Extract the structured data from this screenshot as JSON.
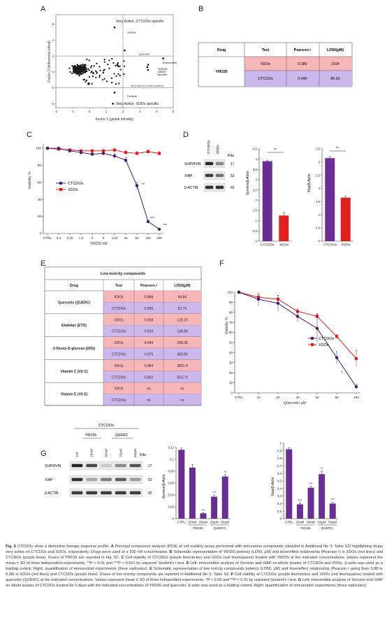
{
  "panels": {
    "A": {
      "letter": "A",
      "xlabel": "Factor 1 (global lethality)",
      "ylabel": "Factor 2 (differential effect)",
      "region_top": "Very Active, CTCDOs specific",
      "region_right": "Very Active in both systems",
      "region_bottom": "Very Active, XDOs specific",
      "xticks": [
        "-2",
        "-1",
        "0",
        "1",
        "2",
        "3",
        "4",
        "5"
      ],
      "yticks": [
        "6",
        "4",
        "2",
        "0",
        "-2",
        "-4"
      ],
      "labels": {
        "ym155": "YM155",
        "auy922": "AUY922",
        "bortezomib": "Bortezomib",
        "tae684": "TAE684",
        "ab050": "AB050",
        "triptolide": "Triptolide",
        "pelitinib": "Pelitinib"
      }
    },
    "B": {
      "letter": "B",
      "headers": [
        "Drug",
        "Test",
        "Pearson r",
        "LD50(µM)"
      ],
      "drug": "YM155",
      "rows": [
        {
          "test": "XDOs",
          "r": "0.380",
          "ld50": "2164"
        },
        {
          "test": "CTCDOs",
          "r": "0.940",
          "ld50": "86.03"
        }
      ]
    },
    "C": {
      "letter": "C",
      "ylabel": "Viability %",
      "xlabel": "YM155 nM",
      "yticks": [
        "100",
        "80",
        "60",
        "40",
        "20",
        "0"
      ],
      "xticks": [
        "CTRL",
        "0,4",
        "0,75",
        "1,5",
        "3",
        "6",
        "12,5",
        "25",
        "50",
        "100",
        "200"
      ],
      "legend": [
        "CTCDOs",
        "XDOs"
      ],
      "sig": [
        "**",
        "***",
        "***"
      ]
    },
    "D": {
      "letter": "D",
      "lanes": [
        "CTCDOs",
        "XDOs"
      ],
      "kda_label": "Kda",
      "blots": [
        {
          "name": "SURVIVIN",
          "kda": "17"
        },
        {
          "name": "XIAP",
          "kda": "53"
        },
        {
          "name": "β-ACTIN",
          "kda": "42"
        }
      ],
      "chart1": {
        "ylabel": "Survivin/β-Actin",
        "yticks": [
          "4,5",
          "4",
          "3,5",
          "3",
          "2,5",
          "2",
          "1,5",
          "1",
          "0,5",
          "0"
        ],
        "categories": [
          "CTCDOs",
          "XDOs"
        ],
        "sig": "**"
      },
      "chart2": {
        "ylabel": "Xiap/β-Actin",
        "yticks": [
          "3,5",
          "3",
          "2,5",
          "2",
          "1,5",
          "1",
          "0,5",
          "0"
        ],
        "categories": [
          "CTCDOs",
          "XDOs"
        ],
        "sig": "**"
      }
    },
    "E": {
      "letter": "E",
      "title": "Low toxicity compounds",
      "headers": [
        "Drug",
        "Test",
        "Pearson r",
        "LD50(µM)"
      ],
      "rows": [
        {
          "drug": "Quercetin (QUERC)",
          "x": {
            "test": "XDOs",
            "r": "0.888",
            "ld50": "94.84"
          },
          "c": {
            "test": "CTCDOs",
            "r": "0.905",
            "ld50": "51.76"
          }
        },
        {
          "drug": "Etodolac (ETO)",
          "x": {
            "test": "XDOs",
            "r": "0.958",
            "ld50": "120.22"
          },
          "c": {
            "test": "CTCDOs",
            "r": "0.910",
            "ld50": "134.86"
          }
        },
        {
          "drug": "2-Deoxy-D-glucose (2DG)",
          "x": {
            "test": "XDOs",
            "r": "0.949",
            "ld50": "258.05"
          },
          "c": {
            "test": "CTCDOs",
            "r": "0.975",
            "ld50": "383.86"
          }
        },
        {
          "drug": "Vitamin C (Vit C)",
          "x": {
            "test": "XDOs",
            "r": "0.984",
            "ld50": "3801.9"
          },
          "c": {
            "test": "CTCDOs",
            "r": "0.902",
            "ld50": "8317.6"
          }
        },
        {
          "drug": "Vitamin E (Vit E)",
          "x": {
            "test": "XDOs",
            "r": "ns",
            "ld50": "ns"
          },
          "c": {
            "test": "CTCDOs",
            "r": "ns",
            "ld50": "ns"
          }
        }
      ]
    },
    "F": {
      "letter": "F",
      "ylabel": "Viability %",
      "xlabel": "Quercetin µM",
      "yticks": [
        "100",
        "90",
        "80",
        "70",
        "60",
        "50",
        "40",
        "30",
        "20",
        "10",
        "0"
      ],
      "xticks": [
        "CTRL",
        "10",
        "20",
        "40",
        "50",
        "80",
        "100"
      ],
      "legend": [
        "CTCDOs",
        "XDOs"
      ],
      "sig": [
        "*",
        "*"
      ]
    },
    "G": {
      "letter": "G",
      "header": "CTCDOs",
      "groups": [
        "YM155",
        "QUERC"
      ],
      "lanes": [
        "Ctrl",
        "25nM",
        "50nM",
        "25µM",
        "50µM"
      ],
      "kda_label": "Kda",
      "blots": [
        {
          "name": "SURVIVIN",
          "kda": "17"
        },
        {
          "name": "XIAP",
          "kda": "53"
        },
        {
          "name": "β-ACTIN",
          "kda": "42"
        }
      ],
      "chart1": {
        "ylabel": "Survivin/β-Actin",
        "yticks": [
          "0,12",
          "0,1",
          "0,08",
          "0,06",
          "0,04",
          "0,02",
          "0"
        ],
        "categories": [
          "CTRL",
          "25nM",
          "50nM",
          "25µM",
          "50µM"
        ],
        "groups": [
          "YM155",
          "QUERC"
        ],
        "sig": [
          "***",
          "***",
          "**"
        ]
      },
      "chart2": {
        "ylabel": "Xiap/β-Actin",
        "yticks": [
          "1",
          "0,9",
          "0,8",
          "0,7",
          "0,6",
          "0,5",
          "0,4",
          "0,3",
          "0,2",
          "0,1",
          "0"
        ],
        "categories": [
          "CTRL",
          "25nM",
          "50nM",
          "25µM",
          "50µM"
        ],
        "groups": [
          "YM155",
          "QUERC"
        ],
        "sig": [
          "***",
          "***",
          "**",
          "***"
        ]
      }
    }
  },
  "chart_data": [
    {
      "type": "scatter",
      "id": "A",
      "xlabel": "Factor 1 (global lethality)",
      "ylabel": "Factor 2 (differential effect)",
      "xlim": [
        -2,
        5
      ],
      "ylim": [
        -4.5,
        7.2
      ],
      "reference_lines": {
        "x": 2,
        "y": [
          2,
          -2
        ]
      },
      "highlighted": [
        {
          "label": "YM155",
          "x": 1.5,
          "y": 5.6
        },
        {
          "label": "AUY922",
          "x": 2.1,
          "y": 2.7
        },
        {
          "label": "Bortezomib",
          "x": 4.4,
          "y": 1.7
        },
        {
          "label": "TAE684",
          "x": 3.5,
          "y": 0.9
        },
        {
          "label": "AB050",
          "x": 3.45,
          "y": 0.6
        },
        {
          "label": "Triptolide",
          "x": 3.5,
          "y": 0.25
        },
        {
          "label": "Pelitinib",
          "x": 1.5,
          "y": -2.6
        },
        {
          "label": "",
          "x": 1.4,
          "y": -4.0
        }
      ],
      "points_count": 265
    },
    {
      "type": "line",
      "id": "C",
      "xlabel": "YM155 nM",
      "ylabel": "Viability %",
      "ylim": [
        0,
        105
      ],
      "categories": [
        "CTRL",
        "0,4",
        "0,75",
        "1,5",
        "3",
        "6",
        "12,5",
        "25",
        "50",
        "100",
        "200"
      ],
      "series": [
        {
          "name": "CTCDOs",
          "values": [
            100,
            100,
            97,
            95,
            93,
            94,
            91,
            86,
            56,
            14,
            5
          ],
          "errors": [
            1,
            1,
            2,
            2,
            2,
            2,
            3,
            3,
            4,
            1,
            1
          ]
        },
        {
          "name": "XDOs",
          "values": [
            100,
            99,
            98,
            97,
            97,
            97,
            98,
            95,
            94,
            96,
            94
          ],
          "errors": [
            1,
            1,
            1,
            1,
            1,
            1,
            1,
            2,
            2,
            2,
            2
          ]
        }
      ]
    },
    {
      "type": "bar",
      "id": "D-survivin",
      "ylabel": "Survivin/β-Actin",
      "ylim": [
        0,
        4.5
      ],
      "categories": [
        "CTCDOs",
        "XDOs"
      ],
      "values": [
        3.9,
        1.25
      ],
      "errors": [
        0.05,
        0.15
      ]
    },
    {
      "type": "bar",
      "id": "D-xiap",
      "ylabel": "Xiap/β-Actin",
      "ylim": [
        0,
        3.5
      ],
      "categories": [
        "CTCDOs",
        "XDOs"
      ],
      "values": [
        3.15,
        1.65
      ],
      "errors": [
        0.06,
        0.05
      ]
    },
    {
      "type": "table",
      "id": "B",
      "columns": [
        "Drug",
        "Test",
        "Pearson r",
        "LD50(µM)"
      ],
      "rows": [
        [
          "YM155",
          "XDOs",
          "0.380",
          "2164"
        ],
        [
          "YM155",
          "CTCDOs",
          "0.940",
          "86.03"
        ]
      ]
    },
    {
      "type": "table",
      "id": "E",
      "title": "Low toxicity compounds",
      "columns": [
        "Drug",
        "Test",
        "Pearson r",
        "LD50(µM)"
      ],
      "rows": [
        [
          "Quercetin (QUERC)",
          "XDOs",
          "0.888",
          "94.84"
        ],
        [
          "Quercetin (QUERC)",
          "CTCDOs",
          "0.905",
          "51.76"
        ],
        [
          "Etodolac (ETO)",
          "XDOs",
          "0.958",
          "120.22"
        ],
        [
          "Etodolac (ETO)",
          "CTCDOs",
          "0.910",
          "134.86"
        ],
        [
          "2-Deoxy-D-glucose (2DG)",
          "XDOs",
          "0.949",
          "258.05"
        ],
        [
          "2-Deoxy-D-glucose (2DG)",
          "CTCDOs",
          "0.975",
          "383.86"
        ],
        [
          "Vitamin C (Vit C)",
          "XDOs",
          "0.984",
          "3801.9"
        ],
        [
          "Vitamin C (Vit C)",
          "CTCDOs",
          "0.902",
          "8317.6"
        ],
        [
          "Vitamin E (Vit E)",
          "XDOs",
          "ns",
          "ns"
        ],
        [
          "Vitamin E (Vit E)",
          "CTCDOs",
          "ns",
          "ns"
        ]
      ]
    },
    {
      "type": "line",
      "id": "F",
      "xlabel": "Quercetin µM",
      "ylabel": "Viability %",
      "ylim": [
        0,
        100
      ],
      "categories": [
        "CTRL",
        "10",
        "20",
        "40",
        "50",
        "80",
        "100"
      ],
      "series": [
        {
          "name": "CTCDOs",
          "values": [
            100,
            93,
            89,
            76,
            64,
            35,
            6
          ],
          "errors": [
            1,
            6,
            8,
            5,
            14,
            6,
            1
          ]
        },
        {
          "name": "XDOs",
          "values": [
            100,
            95,
            93,
            81,
            76,
            56,
            34
          ],
          "errors": [
            1,
            3,
            4,
            3,
            3,
            2,
            8
          ]
        }
      ]
    },
    {
      "type": "bar",
      "id": "G-survivin",
      "ylabel": "Survivin/β-Actin",
      "ylim": [
        0,
        0.12
      ],
      "categories": [
        "CTRL",
        "25nM",
        "50nM",
        "25µM",
        "50µM"
      ],
      "values": [
        0.116,
        0.086,
        0.009,
        0.037,
        0.071
      ],
      "errors": [
        0.003,
        0.005,
        0.001,
        0.003,
        0.003
      ]
    },
    {
      "type": "bar",
      "id": "G-xiap",
      "ylabel": "Xiap/β-Actin",
      "ylim": [
        0,
        1
      ],
      "categories": [
        "CTRL",
        "25nM",
        "50nM",
        "25µM",
        "50µM"
      ],
      "values": [
        0.92,
        0.19,
        0.41,
        0.59,
        0.2
      ],
      "errors": [
        0.02,
        0.02,
        0.02,
        0.04,
        0.02
      ]
    }
  ],
  "caption": {
    "title": "Fig. 5",
    "text1": " CTCDOs show a distinctive therapy response profile. ",
    "A": "A",
    "tA": " Principal component analysis (PCA) of cell viability assay performed with anti-cancer compounds (detailed in Additional file 3: Table S2) highlighting drugs very active on CTCDOs and XDOs, respectively. Drugs were used at a 200 nM concentration. ",
    "B": "B",
    "tB": " Schematic representation of YM155 potency (LD50, µM) and dose/effect relationship (Pearson r) in XDOs (red lines) and CTCDOs (purple lines). Doses of YM155 are reported in Fig. 5C. ",
    "C": "C",
    "tC": " Cell viability of CTCDOs (purple line/circles) and XDOs (red line/squares) treated with YM155 at the indicated concentrations. Values represent the mean ± SD of three independent experiments. **P < 0.01 and ***P < 0.001 by unpaired Student's t test. ",
    "D": "D",
    "tD": " Left: immunoblot analysis of Survivin and XIAP on whole lysates of CTCDOs and XDOs. β-actin was used as a loading control. Right: quantification of immunoblot experiments (three replicates). ",
    "E": "E",
    "tE": " Schematic representation of low toxicity compounds potency (LD50, µM) and dose/effect relationship (Pearson r going from 0.88 to 0.98) in XDOs (red lines) and CTCDOs (purple lines). Doses of low toxicity compounds are reported in Additional file 3: Table S2. ",
    "F": "F",
    "tF": " Cell viability of CTCDOs (purple line/circles) and XDOs (red line/squares) treated with quercetin (QUERC) at the indicated concentrations. Values represent mean ± SD of three independent experiments. *P < 0.05 and **P < 0.01 by unpaired Student's t test. ",
    "G": "G",
    "tG": " Left: immunoblot analysis of Survivin and XIAP on whole lysates of CTCDOs treated for 6 days with the indicated concentrations of YM155 and quercetin. β-actin was used as a loading control. Right: quantification of immunoblot experiments (three replicates)"
  }
}
